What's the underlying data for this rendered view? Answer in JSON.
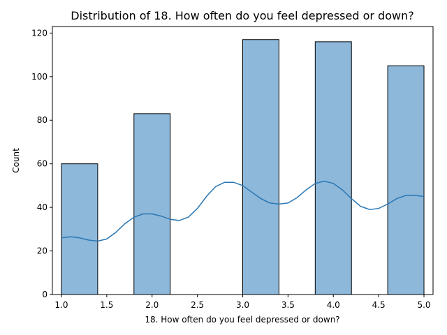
{
  "chart_data": {
    "type": "bar",
    "title": "Distribution of 18. How often do you feel depressed or down?",
    "xlabel": "18. How often do you feel depressed or down?",
    "ylabel": "Count",
    "xlim": [
      0.9,
      5.1
    ],
    "ylim": [
      0,
      123
    ],
    "x_ticks": [
      "1.0",
      "1.5",
      "2.0",
      "2.5",
      "3.0",
      "3.5",
      "4.0",
      "4.5",
      "5.0"
    ],
    "x_tick_values": [
      1.0,
      1.5,
      2.0,
      2.5,
      3.0,
      3.5,
      4.0,
      4.5,
      5.0
    ],
    "y_ticks": [
      "0",
      "20",
      "40",
      "60",
      "80",
      "100",
      "120"
    ],
    "y_tick_values": [
      0,
      20,
      40,
      60,
      80,
      100,
      120
    ],
    "bins": [
      {
        "x0": 1.0,
        "x1": 1.4,
        "count": 60
      },
      {
        "x0": 1.4,
        "x1": 1.8,
        "count": 0
      },
      {
        "x0": 1.8,
        "x1": 2.2,
        "count": 83
      },
      {
        "x0": 2.2,
        "x1": 2.6,
        "count": 0
      },
      {
        "x0": 2.6,
        "x1": 3.0,
        "count": 0
      },
      {
        "x0": 3.0,
        "x1": 3.4,
        "count": 117
      },
      {
        "x0": 3.4,
        "x1": 3.8,
        "count": 0
      },
      {
        "x0": 3.8,
        "x1": 4.2,
        "count": 116
      },
      {
        "x0": 4.2,
        "x1": 4.6,
        "count": 0
      },
      {
        "x0": 4.6,
        "x1": 5.0,
        "count": 105
      }
    ],
    "kde": {
      "x": [
        1.0,
        1.1,
        1.2,
        1.3,
        1.4,
        1.5,
        1.6,
        1.7,
        1.8,
        1.9,
        2.0,
        2.1,
        2.2,
        2.3,
        2.4,
        2.5,
        2.6,
        2.7,
        2.8,
        2.9,
        3.0,
        3.1,
        3.2,
        3.3,
        3.4,
        3.5,
        3.6,
        3.7,
        3.8,
        3.9,
        4.0,
        4.1,
        4.2,
        4.3,
        4.4,
        4.5,
        4.6,
        4.7,
        4.8,
        4.9,
        5.0
      ],
      "y": [
        26,
        26.5,
        26,
        25,
        24.5,
        25.5,
        28.5,
        32.5,
        35.5,
        37,
        37,
        36,
        34.5,
        34,
        35.5,
        39.5,
        45,
        49.5,
        51.5,
        51.5,
        50,
        47,
        44,
        42,
        41.5,
        42,
        44.5,
        48,
        51,
        52,
        51,
        48,
        44,
        40.5,
        39,
        39.5,
        41.5,
        44,
        45.5,
        45.5,
        45
      ]
    },
    "bar_color": "#8db8da",
    "bar_edge_color": "#000000",
    "line_color": "#2a77b4",
    "grid": false,
    "legend": "none"
  }
}
